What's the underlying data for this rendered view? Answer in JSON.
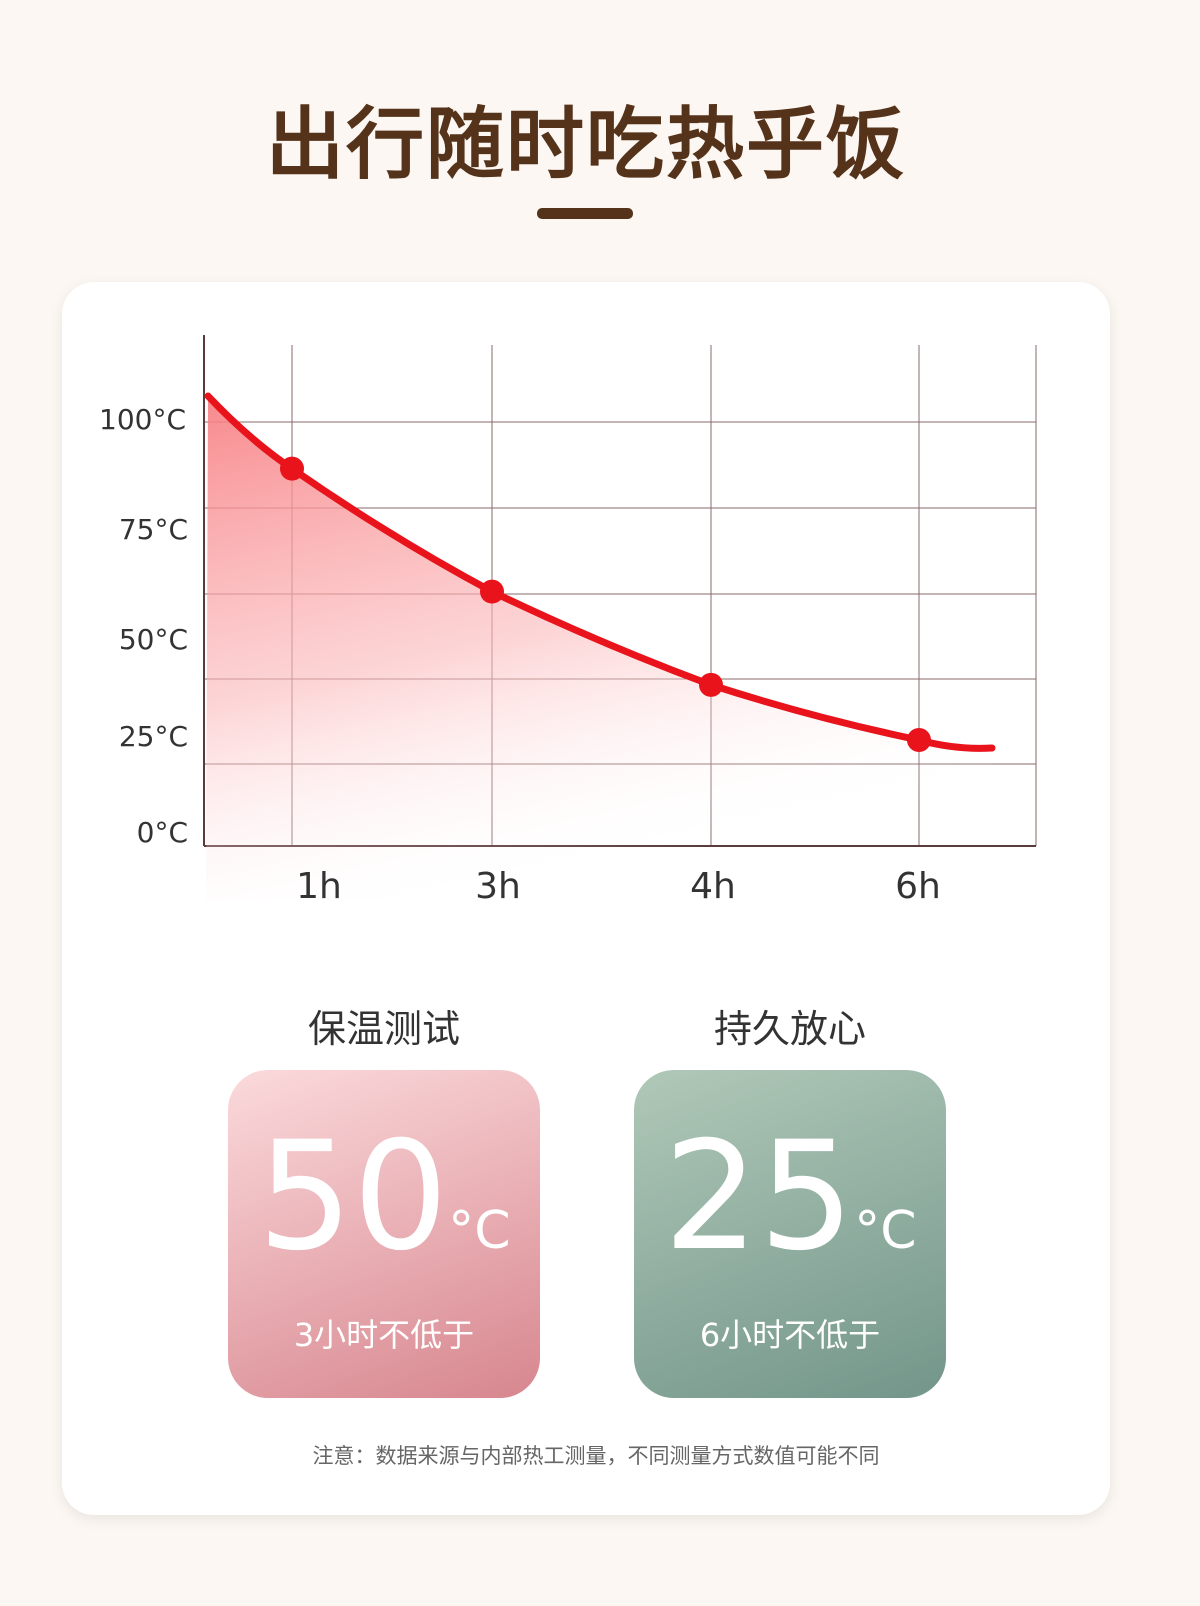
{
  "title": "出行随时吃热乎饭",
  "chart_data": {
    "type": "line",
    "categories": [
      "1h",
      "3h",
      "4h",
      "6h"
    ],
    "values": [
      89,
      60,
      38,
      25
    ],
    "y_tick_labels": [
      "100°C",
      "75°C",
      "50°C",
      "25°C",
      "0°C"
    ],
    "ylim": [
      0,
      100
    ],
    "grid": true,
    "fill": "gradient area under line",
    "line_color": "#e8131b"
  },
  "cards": [
    {
      "caption": "保温测试",
      "value": "50",
      "unit": "°C",
      "subtitle": "3小时不低于",
      "color": "#d98890"
    },
    {
      "caption": "持久放心",
      "value": "25",
      "unit": "°C",
      "subtitle": "6小时不低于",
      "color": "#76988a"
    }
  ],
  "note": "注意：数据来源与内部热工测量，不同测量方式数值可能不同"
}
